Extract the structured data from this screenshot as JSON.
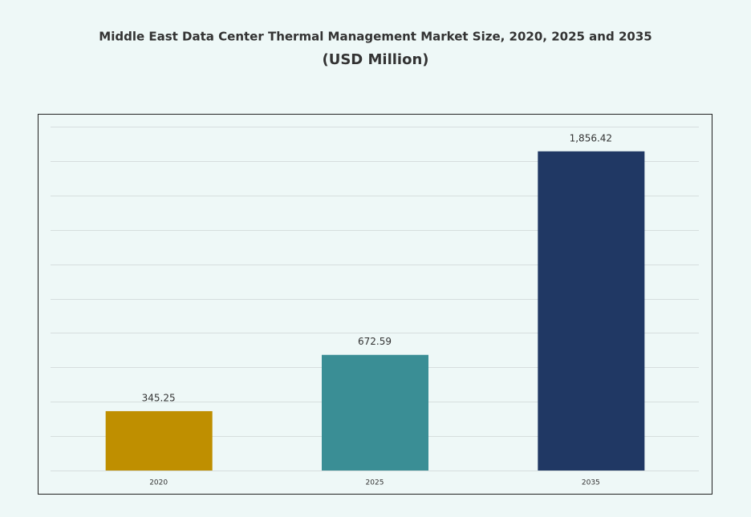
{
  "chart_data": {
    "type": "bar",
    "title": "Middle East Data Center Thermal Management Market Size, 2020, 2025 and 2035",
    "subtitle": "(USD Million)",
    "categories": [
      "2020",
      "2025",
      "2035"
    ],
    "values": [
      345.25,
      672.59,
      1856.42
    ],
    "value_labels": [
      "345.25",
      "672.59",
      "1,856.42"
    ],
    "colors": [
      "#bf8f00",
      "#3a8e95",
      "#203864"
    ],
    "ylim": [
      0,
      2000
    ],
    "yticks": [
      0,
      200,
      400,
      600,
      800,
      1000,
      1200,
      1400,
      1600,
      1800,
      2000
    ],
    "grid": true
  }
}
